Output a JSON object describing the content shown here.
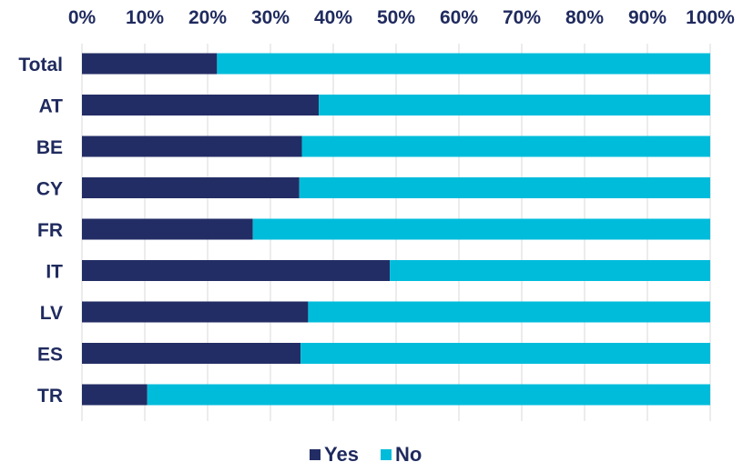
{
  "chart_data": {
    "type": "bar",
    "orientation": "horizontal",
    "stacked": "percent",
    "categories": [
      "Total",
      "AT",
      "BE",
      "CY",
      "FR",
      "IT",
      "LV",
      "ES",
      "TR"
    ],
    "series": [
      {
        "name": "Yes",
        "color": "#232d65",
        "values": [
          21.5,
          37.7,
          35.0,
          34.6,
          27.2,
          49.0,
          36.0,
          34.8,
          10.4
        ]
      },
      {
        "name": "No",
        "color": "#00bcdb",
        "values": [
          78.5,
          62.3,
          65.0,
          65.4,
          72.8,
          51.0,
          64.0,
          65.2,
          89.6
        ]
      }
    ],
    "x_ticks": [
      "0%",
      "10%",
      "20%",
      "30%",
      "40%",
      "50%",
      "60%",
      "70%",
      "80%",
      "90%",
      "100%"
    ],
    "xlim": [
      0,
      100
    ],
    "x_axis_position": "top",
    "grid": true,
    "legend_position": "bottom",
    "title": "",
    "xlabel": "",
    "ylabel": ""
  }
}
